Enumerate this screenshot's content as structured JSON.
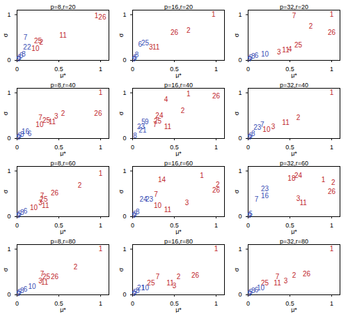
{
  "chart_data": [
    {
      "type": "scatter",
      "title": "p=8,r=20",
      "x_label": "μ*",
      "y_label": "σ",
      "xlim": [
        0,
        1.1
      ],
      "ylim": [
        0,
        1.1
      ],
      "xticks": [
        0,
        0.5,
        1
      ],
      "yticks": [
        0,
        1
      ],
      "marker": "label",
      "series": [
        {
          "color": "#c0272d",
          "labels": [
            "1",
            "26",
            "11",
            "25",
            "2",
            "10"
          ],
          "x": [
            0.95,
            1.02,
            0.55,
            0.25,
            0.29,
            0.22
          ],
          "y": [
            0.97,
            0.95,
            0.55,
            0.43,
            0.4,
            0.26
          ]
        },
        {
          "color": "#3a4fb5",
          "labels": [
            "7",
            "22",
            "5",
            "6",
            "8",
            "9"
          ],
          "x": [
            0.1,
            0.12,
            0.03,
            0.05,
            0.08,
            0.02
          ],
          "y": [
            0.5,
            0.28,
            0.05,
            0.1,
            0.14,
            0.02
          ]
        }
      ]
    },
    {
      "type": "scatter",
      "title": "p=16,r=20",
      "x_label": "μ*",
      "y_label": "σ",
      "xlim": [
        0,
        1.1
      ],
      "ylim": [
        0,
        1.1
      ],
      "xticks": [
        0,
        0.5,
        1
      ],
      "yticks": [
        0,
        1
      ],
      "marker": "label",
      "series": [
        {
          "color": "#c0272d",
          "labels": [
            "1",
            "2",
            "26",
            "3",
            "11"
          ],
          "x": [
            0.97,
            0.67,
            0.5,
            0.22,
            0.28
          ],
          "y": [
            1.0,
            0.66,
            0.6,
            0.28,
            0.28
          ]
        },
        {
          "color": "#3a4fb5",
          "labels": [
            "25",
            "6",
            "5",
            "8",
            "9"
          ],
          "x": [
            0.15,
            0.09,
            0.03,
            0.05,
            0.02
          ],
          "y": [
            0.38,
            0.34,
            0.06,
            0.12,
            0.02
          ]
        }
      ]
    },
    {
      "type": "scatter",
      "title": "p=32,r=20",
      "x_label": "μ*",
      "y_label": "σ",
      "xlim": [
        0,
        1.1
      ],
      "ylim": [
        0,
        1.1
      ],
      "xticks": [
        0,
        0.5,
        1
      ],
      "yticks": [
        0,
        1
      ],
      "marker": "label",
      "series": [
        {
          "color": "#c0272d",
          "labels": [
            "1",
            "7",
            "2",
            "26",
            "25",
            "11",
            "4",
            "3"
          ],
          "x": [
            1.0,
            0.55,
            0.75,
            1.0,
            0.6,
            0.45,
            0.5,
            0.37
          ],
          "y": [
            1.0,
            0.97,
            0.75,
            0.6,
            0.33,
            0.22,
            0.24,
            0.18
          ]
        },
        {
          "color": "#3a4fb5",
          "labels": [
            "10",
            "6",
            "5",
            "8",
            "9"
          ],
          "x": [
            0.2,
            0.1,
            0.03,
            0.06,
            0.02
          ],
          "y": [
            0.14,
            0.1,
            0.05,
            0.08,
            0.02
          ]
        }
      ]
    },
    {
      "type": "scatter",
      "title": "p=8,r=40",
      "x_label": "μ*",
      "y_label": "σ",
      "xlim": [
        0,
        1.1
      ],
      "ylim": [
        0,
        1.1
      ],
      "xticks": [
        0,
        0.5,
        1
      ],
      "yticks": [
        0,
        1
      ],
      "marker": "label",
      "series": [
        {
          "color": "#c0272d",
          "labels": [
            "1",
            "26",
            "2",
            "3",
            "7",
            "25",
            "11",
            "10"
          ],
          "x": [
            1.0,
            0.97,
            0.55,
            0.47,
            0.28,
            0.35,
            0.42,
            0.27
          ],
          "y": [
            1.0,
            0.55,
            0.55,
            0.48,
            0.45,
            0.4,
            0.36,
            0.3
          ]
        },
        {
          "color": "#3a4fb5",
          "labels": [
            "16",
            "6",
            "5",
            "8",
            "9"
          ],
          "x": [
            0.1,
            0.15,
            0.03,
            0.06,
            0.02
          ],
          "y": [
            0.15,
            0.1,
            0.05,
            0.08,
            0.02
          ]
        }
      ]
    },
    {
      "type": "scatter",
      "title": "p=16,r=40",
      "x_label": "μ*",
      "y_label": "σ",
      "xlim": [
        0,
        1.1
      ],
      "ylim": [
        0,
        1.1
      ],
      "xticks": [
        0,
        0.5,
        1
      ],
      "yticks": [
        0,
        1
      ],
      "marker": "label",
      "series": [
        {
          "color": "#c0272d",
          "labels": [
            "1",
            "4",
            "26",
            "2",
            "24",
            "25",
            "11",
            "7"
          ],
          "x": [
            0.67,
            0.4,
            1.0,
            0.6,
            0.32,
            0.3,
            0.42,
            0.27
          ],
          "y": [
            0.97,
            0.85,
            0.93,
            0.6,
            0.5,
            0.38,
            0.25,
            0.3
          ]
        },
        {
          "color": "#3a4fb5",
          "labels": [
            "5",
            "9",
            "23",
            "21",
            "8"
          ],
          "x": [
            0.13,
            0.17,
            0.1,
            0.12,
            0.03
          ],
          "y": [
            0.36,
            0.36,
            0.25,
            0.18,
            0.05
          ]
        }
      ]
    },
    {
      "type": "scatter",
      "title": "p=32,r=40",
      "x_label": "μ*",
      "y_label": "σ",
      "xlim": [
        0,
        1.1
      ],
      "ylim": [
        0,
        1.1
      ],
      "xticks": [
        0,
        0.5,
        1
      ],
      "yticks": [
        0,
        1
      ],
      "marker": "label",
      "series": [
        {
          "color": "#c0272d",
          "labels": [
            "1",
            "2",
            "11",
            "3",
            "10"
          ],
          "x": [
            1.0,
            0.6,
            0.45,
            0.3,
            0.22
          ],
          "y": [
            1.0,
            0.45,
            0.35,
            0.25,
            0.2
          ]
        },
        {
          "color": "#3a4fb5",
          "labels": [
            "7",
            "23",
            "5",
            "8",
            "9"
          ],
          "x": [
            0.17,
            0.11,
            0.03,
            0.06,
            0.02
          ],
          "y": [
            0.3,
            0.24,
            0.05,
            0.1,
            0.02
          ]
        }
      ]
    },
    {
      "type": "scatter",
      "title": "p=8,r=60",
      "x_label": "μ*",
      "y_label": "σ",
      "xlim": [
        0,
        1.1
      ],
      "ylim": [
        0,
        1.1
      ],
      "xticks": [
        0,
        0.5,
        1
      ],
      "yticks": [
        0,
        1
      ],
      "marker": "label",
      "series": [
        {
          "color": "#c0272d",
          "labels": [
            "1",
            "2",
            "26",
            "7",
            "25",
            "3",
            "11",
            "10"
          ],
          "x": [
            1.0,
            0.75,
            0.45,
            0.3,
            0.32,
            0.28,
            0.34,
            0.2
          ],
          "y": [
            0.95,
            0.68,
            0.52,
            0.45,
            0.37,
            0.3,
            0.24,
            0.2
          ]
        },
        {
          "color": "#3a4fb5",
          "labels": [
            "6",
            "5",
            "8",
            "9"
          ],
          "x": [
            0.1,
            0.03,
            0.06,
            0.02
          ],
          "y": [
            0.12,
            0.05,
            0.08,
            0.02
          ]
        }
      ]
    },
    {
      "type": "scatter",
      "title": "p=16,r=60",
      "x_label": "μ*",
      "y_label": "σ",
      "xlim": [
        0,
        1.1
      ],
      "ylim": [
        0,
        1.1
      ],
      "xticks": [
        0,
        0.5,
        1
      ],
      "yticks": [
        0,
        1
      ],
      "marker": "label",
      "series": [
        {
          "color": "#c0272d",
          "labels": [
            "1",
            "2",
            "26",
            "14",
            "3",
            "11",
            "10",
            "7"
          ],
          "x": [
            0.83,
            1.02,
            1.0,
            0.35,
            0.65,
            0.42,
            0.3,
            0.28
          ],
          "y": [
            0.9,
            0.7,
            0.58,
            0.8,
            0.3,
            0.15,
            0.24,
            0.48
          ]
        },
        {
          "color": "#3a4fb5",
          "labels": [
            "24",
            "23",
            "5",
            "8",
            "9"
          ],
          "x": [
            0.13,
            0.2,
            0.03,
            0.06,
            0.02
          ],
          "y": [
            0.38,
            0.38,
            0.05,
            0.1,
            0.02
          ]
        }
      ]
    },
    {
      "type": "scatter",
      "title": "p=32,r=60",
      "x_label": "μ*",
      "y_label": "σ",
      "xlim": [
        0,
        1.1
      ],
      "ylim": [
        0,
        1.1
      ],
      "xticks": [
        0,
        0.5,
        1
      ],
      "yticks": [
        0,
        1
      ],
      "marker": "label",
      "series": [
        {
          "color": "#c0272d",
          "labels": [
            "1",
            "2",
            "26",
            "18",
            "24",
            "3",
            "11"
          ],
          "x": [
            0.9,
            1.02,
            1.0,
            0.52,
            0.6,
            0.6,
            0.66
          ],
          "y": [
            0.8,
            0.75,
            0.55,
            0.83,
            0.89,
            0.4,
            0.3
          ]
        },
        {
          "color": "#3a4fb5",
          "labels": [
            "23",
            "16",
            "7",
            "5",
            "9"
          ],
          "x": [
            0.2,
            0.2,
            0.1,
            0.03,
            0.02
          ],
          "y": [
            0.6,
            0.45,
            0.38,
            0.05,
            0.02
          ]
        }
      ]
    },
    {
      "type": "scatter",
      "title": "p=8,r=80",
      "x_label": "μ*",
      "y_label": "σ",
      "xlim": [
        0,
        1.1
      ],
      "ylim": [
        0,
        1.1
      ],
      "xticks": [
        0,
        0.5,
        1
      ],
      "yticks": [
        0,
        1
      ],
      "marker": "label",
      "series": [
        {
          "color": "#c0272d",
          "labels": [
            "1",
            "2",
            "7",
            "25",
            "26",
            "3",
            "11"
          ],
          "x": [
            1.0,
            0.7,
            0.3,
            0.35,
            0.45,
            0.28,
            0.33
          ],
          "y": [
            1.0,
            0.6,
            0.45,
            0.4,
            0.4,
            0.3,
            0.27
          ]
        },
        {
          "color": "#3a4fb5",
          "labels": [
            "10",
            "6",
            "5",
            "8",
            "9"
          ],
          "x": [
            0.18,
            0.1,
            0.03,
            0.06,
            0.02
          ],
          "y": [
            0.18,
            0.12,
            0.05,
            0.08,
            0.02
          ]
        }
      ]
    },
    {
      "type": "scatter",
      "title": "p=16,r=80",
      "x_label": "μ*",
      "y_label": "σ",
      "xlim": [
        0,
        1.1
      ],
      "ylim": [
        0,
        1.1
      ],
      "xticks": [
        0,
        0.5,
        1
      ],
      "yticks": [
        0,
        1
      ],
      "marker": "label",
      "series": [
        {
          "color": "#c0272d",
          "labels": [
            "1",
            "2",
            "26",
            "7",
            "25",
            "11",
            "3"
          ],
          "x": [
            1.0,
            0.55,
            0.75,
            0.3,
            0.22,
            0.45,
            0.5
          ],
          "y": [
            1.0,
            0.4,
            0.42,
            0.4,
            0.25,
            0.25,
            0.2
          ]
        },
        {
          "color": "#3a4fb5",
          "labels": [
            "21",
            "10",
            "5",
            "8",
            "9"
          ],
          "x": [
            0.1,
            0.15,
            0.03,
            0.06,
            0.02
          ],
          "y": [
            0.15,
            0.15,
            0.05,
            0.08,
            0.02
          ]
        }
      ]
    },
    {
      "type": "scatter",
      "title": "p=32,r=80",
      "x_label": "μ*",
      "y_label": "σ",
      "xlim": [
        0,
        1.1
      ],
      "ylim": [
        0,
        1.1
      ],
      "xticks": [
        0,
        0.5,
        1
      ],
      "yticks": [
        0,
        1
      ],
      "marker": "label",
      "series": [
        {
          "color": "#c0272d",
          "labels": [
            "1",
            "26",
            "2",
            "7",
            "3",
            "11",
            "25"
          ],
          "x": [
            1.0,
            0.7,
            0.55,
            0.35,
            0.45,
            0.35,
            0.2
          ],
          "y": [
            1.0,
            0.45,
            0.42,
            0.4,
            0.3,
            0.25,
            0.25
          ]
        },
        {
          "color": "#3a4fb5",
          "labels": [
            "10",
            "6",
            "5",
            "8",
            "9"
          ],
          "x": [
            0.15,
            0.1,
            0.03,
            0.06,
            0.02
          ],
          "y": [
            0.15,
            0.1,
            0.05,
            0.08,
            0.02
          ]
        }
      ]
    }
  ]
}
